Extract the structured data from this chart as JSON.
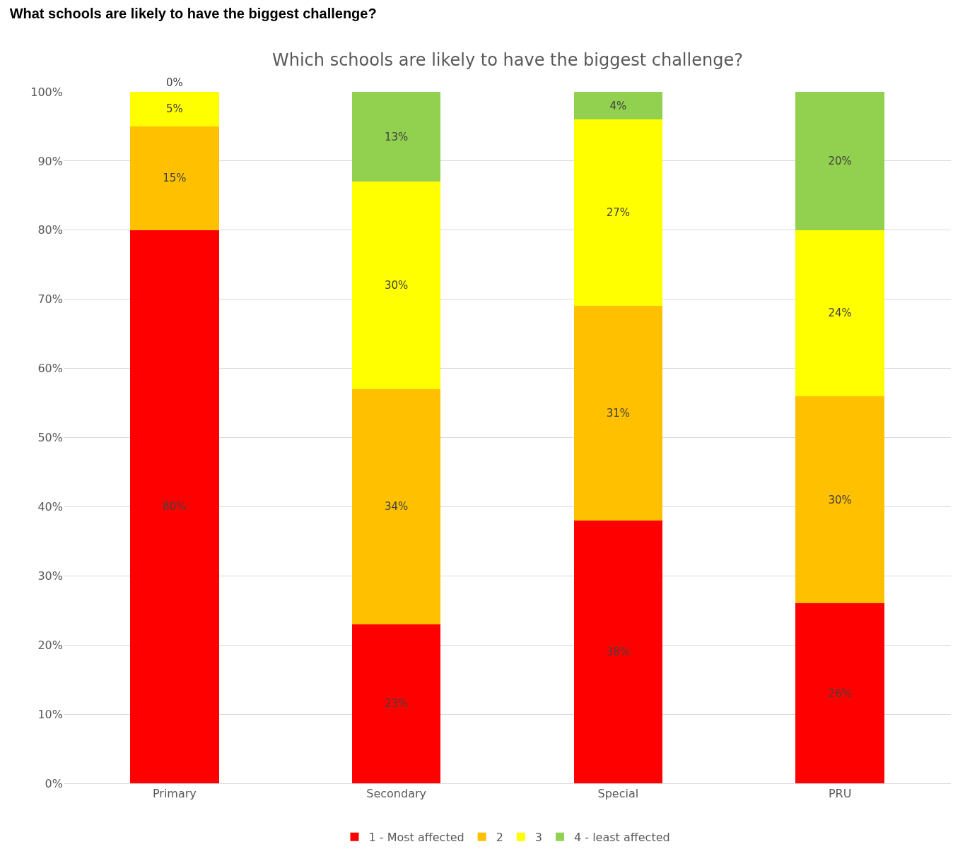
{
  "chart_data": {
    "type": "bar",
    "title": "What schools are likely to have the biggest challenge?",
    "subtitle": "Which schools are likely to have the biggest challenge?",
    "categories": [
      "Primary",
      "Secondary",
      "Special",
      "PRU"
    ],
    "stacked": true,
    "series": [
      {
        "name": "1 - Most affected",
        "color": "#ff0000",
        "values": [
          80,
          23,
          38,
          26
        ],
        "value_labels": [
          "80%",
          "23%",
          "38%",
          "26%"
        ]
      },
      {
        "name": "2",
        "color": "#ffc000",
        "values": [
          15,
          34,
          31,
          30
        ],
        "value_labels": [
          "15%",
          "34%",
          "31%",
          "30%"
        ]
      },
      {
        "name": "3",
        "color": "#ffff00",
        "values": [
          5,
          30,
          27,
          24
        ],
        "value_labels": [
          "5%",
          "30%",
          "27%",
          "24%"
        ]
      },
      {
        "name": "4 - least affected",
        "color": "#92d050",
        "values": [
          0,
          13,
          4,
          20
        ],
        "value_labels": [
          "0%",
          "13%",
          "4%",
          "20%"
        ]
      }
    ],
    "ylim": [
      0,
      100
    ],
    "yticks": [
      {
        "value": 0,
        "label": "0%"
      },
      {
        "value": 10,
        "label": "10%"
      },
      {
        "value": 20,
        "label": "20%"
      },
      {
        "value": 30,
        "label": "30%"
      },
      {
        "value": 40,
        "label": "40%"
      },
      {
        "value": 50,
        "label": "50%"
      },
      {
        "value": 60,
        "label": "60%"
      },
      {
        "value": 70,
        "label": "70%"
      },
      {
        "value": 80,
        "label": "80%"
      },
      {
        "value": 90,
        "label": "90%"
      },
      {
        "value": 100,
        "label": "100%"
      }
    ],
    "grid": "y",
    "legend": "bottom"
  }
}
